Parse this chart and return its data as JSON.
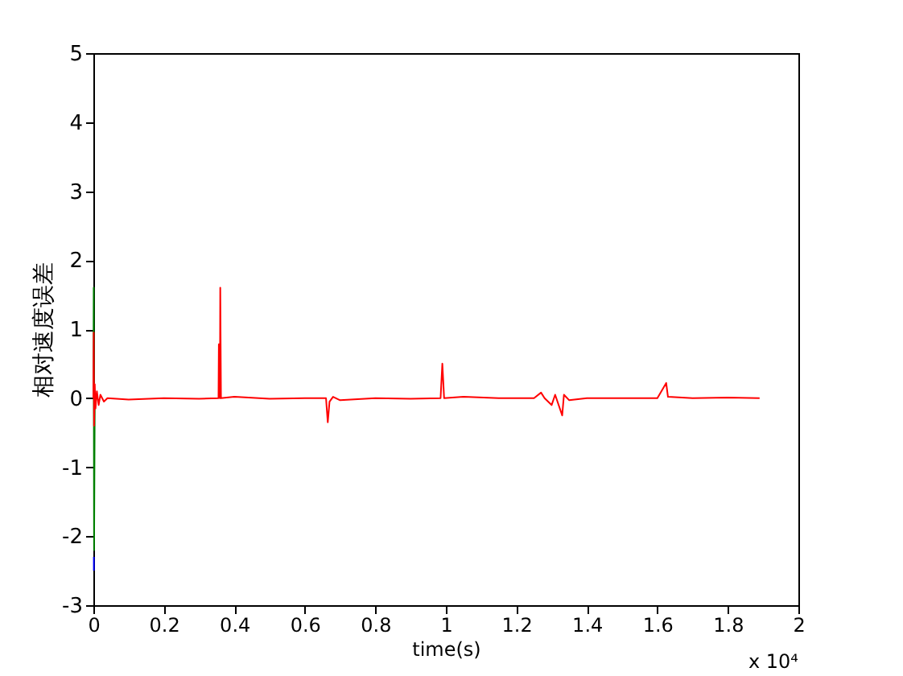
{
  "chart_data": {
    "type": "line",
    "xlabel": "time(s)",
    "ylabel": "相对速度误差",
    "xlim": [
      0,
      2
    ],
    "xticks": [
      0,
      0.2,
      0.4,
      0.6,
      0.8,
      1,
      1.2,
      1.4,
      1.6,
      1.8,
      2
    ],
    "ylim": [
      -3,
      5
    ],
    "yticks": [
      -3,
      -2,
      -1,
      0,
      1,
      2,
      3,
      4,
      5
    ],
    "grid": false,
    "annotations": [
      "x 10⁴"
    ],
    "series": [
      {
        "color": "#0000ff",
        "x": [
          0.0014,
          0.0015
        ],
        "values": [
          -2.3,
          -2.5
        ]
      },
      {
        "color": "#008000",
        "x": [
          0,
          0.001,
          0.002,
          0.004
        ],
        "values": [
          0,
          1.6,
          -2.2,
          0
        ]
      },
      {
        "color": "#ff0000",
        "x": [
          0,
          0.001,
          0.002,
          0.004,
          0.006,
          0.01,
          0.015,
          0.02,
          0.03,
          0.04,
          0.1,
          0.2,
          0.3,
          0.355,
          0.356,
          0.358,
          0.359,
          0.36,
          0.362,
          0.4,
          0.5,
          0.6,
          0.66,
          0.665,
          0.67,
          0.68,
          0.7,
          0.8,
          0.9,
          0.985,
          0.99,
          0.995,
          1.05,
          1.15,
          1.25,
          1.27,
          1.28,
          1.3,
          1.31,
          1.33,
          1.335,
          1.35,
          1.4,
          1.5,
          1.6,
          1.625,
          1.63,
          1.7,
          1.8,
          1.89
        ],
        "values": [
          0,
          0.95,
          -0.4,
          0.2,
          -0.15,
          0.1,
          -0.1,
          0.05,
          -0.05,
          0,
          -0.02,
          0,
          -0.01,
          0,
          0.78,
          0.78,
          0,
          1.6,
          0,
          0.02,
          -0.01,
          0,
          0,
          -0.35,
          -0.05,
          0.02,
          -0.03,
          0,
          -0.01,
          0,
          0.5,
          0,
          0.02,
          0,
          0,
          0.08,
          0,
          -0.1,
          0.05,
          -0.25,
          0.05,
          -0.03,
          0,
          0,
          0,
          0.22,
          0.02,
          0,
          0.01,
          0
        ]
      }
    ]
  }
}
